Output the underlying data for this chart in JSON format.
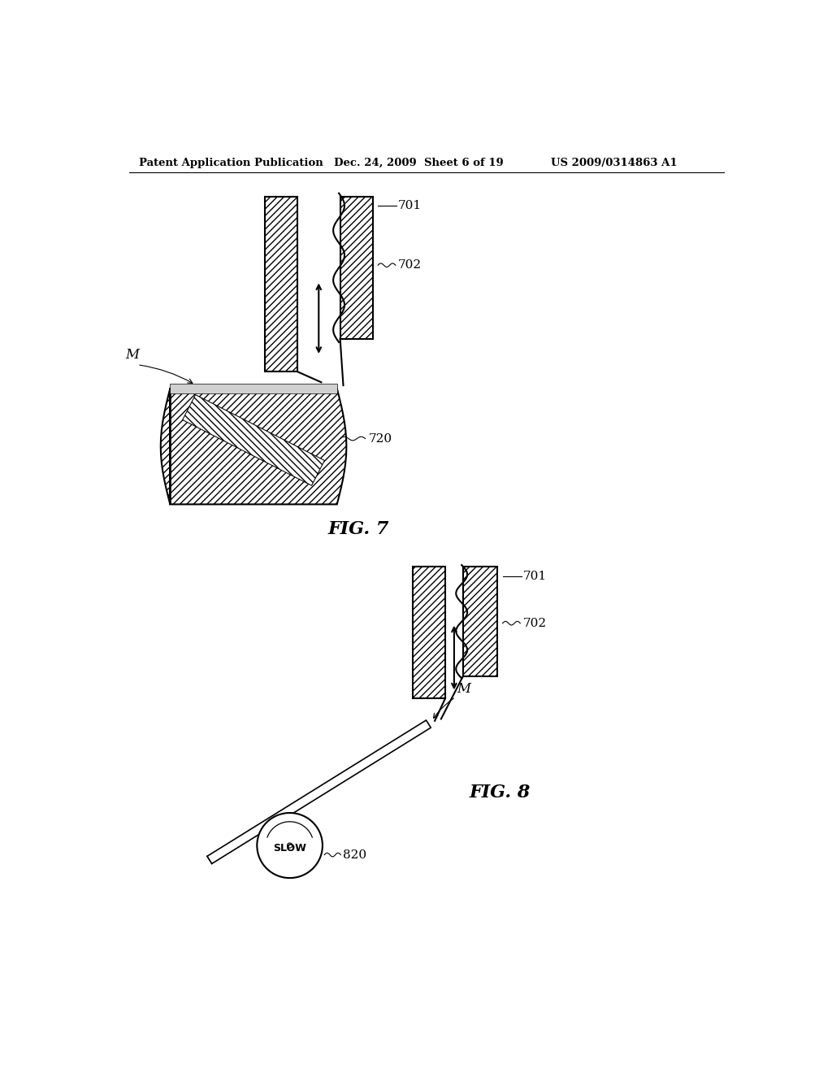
{
  "bg_color": "#ffffff",
  "line_color": "#000000",
  "header_left": "Patent Application Publication",
  "header_mid": "Dec. 24, 2009  Sheet 6 of 19",
  "header_right": "US 2009/0314863 A1",
  "fig7_label": "FIG. 7",
  "fig8_label": "FIG. 8",
  "label_701_top": "701",
  "label_702_top": "702",
  "label_720": "720",
  "label_M_top": "M",
  "label_701_bot": "701",
  "label_702_bot": "702",
  "label_M_bot": "M",
  "label_820": "820",
  "label_SLOW": "SLOW"
}
